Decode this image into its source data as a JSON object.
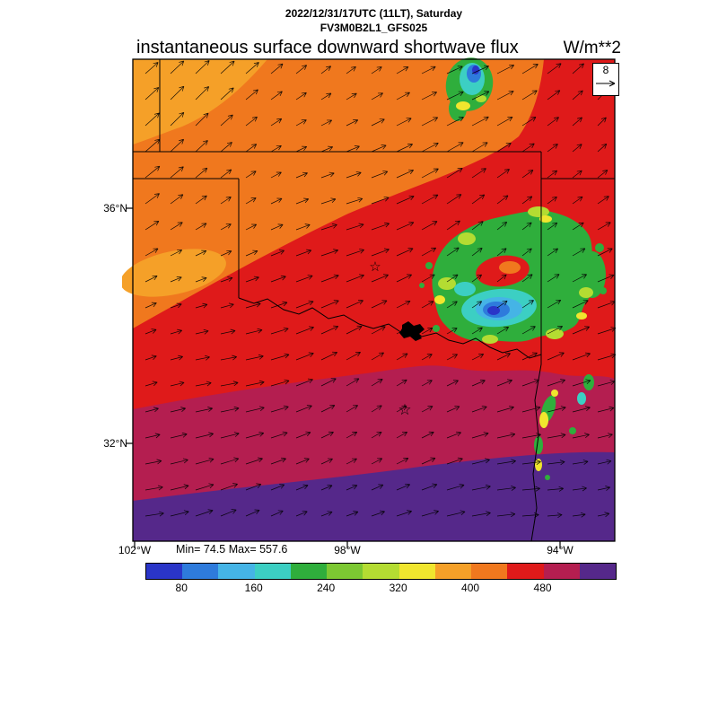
{
  "header": {
    "datetime": "2022/12/31/17UTC (11LT), Saturday",
    "model": "FV3M0B2L1_GFS025"
  },
  "chart": {
    "title": "instantaneous surface downward shortwave flux",
    "units": "W/m**2",
    "reference_vector_label": "8"
  },
  "axes": {
    "lat": [
      "36°N",
      "32°N"
    ],
    "lon": [
      "102°W",
      "98°W",
      "94°W"
    ]
  },
  "stats": {
    "minmax": "Min= 74.5 Max= 557.6"
  },
  "colorbar": {
    "tick_labels": [
      "80",
      "160",
      "240",
      "320",
      "400",
      "480"
    ],
    "colors": [
      "#2A35C8",
      "#2E7BDC",
      "#45B4E6",
      "#3CCFC3",
      "#2FAE3C",
      "#7CC832",
      "#B4DC32",
      "#F0E62E",
      "#F5A028",
      "#F0781E",
      "#DF1A1A",
      "#B41E50",
      "#55288A"
    ]
  },
  "chart_data": {
    "type": "heatmap",
    "title": "instantaneous surface downward shortwave flux",
    "subtitle": "2022/12/31/17UTC (11LT), Saturday",
    "model_run": "FV3M0B2L1_GFS025",
    "units": "W/m**2",
    "min": 74.5,
    "max": 557.6,
    "colorbar": {
      "levels": [
        40,
        80,
        120,
        160,
        200,
        240,
        280,
        320,
        360,
        400,
        440,
        480,
        520,
        560
      ],
      "ticks": [
        80,
        160,
        240,
        320,
        400,
        480
      ],
      "colors": [
        "#2A35C8",
        "#2E7BDC",
        "#45B4E6",
        "#3CCFC3",
        "#2FAE3C",
        "#7CC832",
        "#B4DC32",
        "#F0E62E",
        "#F5A028",
        "#F0781E",
        "#DF1A1A",
        "#B41E50",
        "#55288A"
      ]
    },
    "lat_ticks": [
      "36°N",
      "32°N"
    ],
    "lon_ticks": [
      "102°W",
      "98°W",
      "94°W"
    ],
    "overlays": {
      "wind_quiver": true,
      "reference_vector": 8,
      "star_markers": 2,
      "state_borders": true
    },
    "field_summary": "High downward shortwave flux (orange/red 360-480) over Texas panhandle and Oklahoma, maroon/violet (480-560) across southern Texas strip, cloud-reduced minima (green/cyan/blue 80-280) over eastern Oklahoma and a small cell at the northern edge"
  }
}
